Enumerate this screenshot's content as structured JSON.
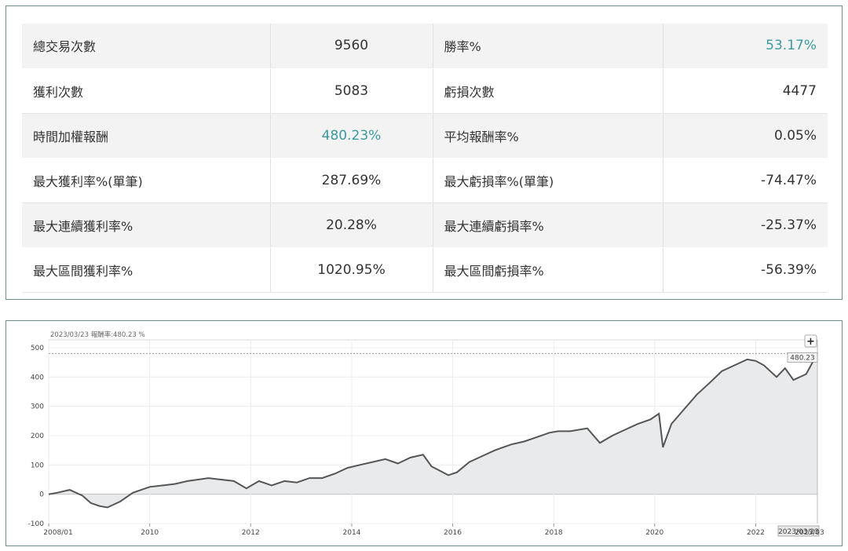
{
  "stats": {
    "rows": [
      {
        "l1": "總交易次數",
        "v1": "9560",
        "l2": "勝率%",
        "v2": "53.17%"
      },
      {
        "l1": "獲利次數",
        "v1": "5083",
        "l2": "虧損次數",
        "v2": "4477"
      },
      {
        "l1": "時間加權報酬",
        "v1": "480.23%",
        "l2": "平均報酬率%",
        "v2": "0.05%"
      },
      {
        "l1": "最大獲利率%(單筆)",
        "v1": "287.69%",
        "l2": "最大虧損率%(單筆)",
        "v2": "-74.47%"
      },
      {
        "l1": "最大連續獲利率%",
        "v1": "20.28%",
        "l2": "最大連續虧損率%",
        "v2": "-25.37%"
      },
      {
        "l1": "最大區間獲利率%",
        "v1": "1020.95%",
        "l2": "最大區間虧損率%",
        "v2": "-56.39%"
      }
    ]
  },
  "colors": {
    "accent": "#3a9a9e",
    "border": "#6b8e8a",
    "line": "#555555",
    "area": "#e8eaec"
  },
  "chart": {
    "info_date": "2023/03/23",
    "info_label": "報酬率:480.23 %",
    "last_value_label": "480.23",
    "last_date_label": "2023/03/23",
    "tail_label": "2023/03",
    "zoom_button": "+"
  },
  "chart_data": {
    "type": "area",
    "title": "",
    "xlabel": "",
    "ylabel": "",
    "x_range": [
      "2008/01",
      "2023/03/23"
    ],
    "ylim": [
      -100,
      500
    ],
    "y_ticks": [
      -100,
      0,
      100,
      200,
      300,
      400,
      500
    ],
    "x_tick_labels": [
      "2008/01",
      "2010",
      "2012",
      "2014",
      "2016",
      "2018",
      "2020",
      "2022"
    ],
    "grid": true,
    "legend": "none",
    "reference_line": 480.23,
    "series": [
      {
        "x": [
          "2008-01",
          "2008-03",
          "2008-06",
          "2008-09",
          "2008-11",
          "2009-01",
          "2009-03",
          "2009-06",
          "2009-09",
          "2010-01",
          "2010-04",
          "2010-07",
          "2010-10",
          "2011-03",
          "2011-06",
          "2011-09",
          "2011-12",
          "2012-03",
          "2012-06",
          "2012-09",
          "2012-12",
          "2013-03",
          "2013-06",
          "2013-09",
          "2013-12",
          "2014-03",
          "2014-06",
          "2014-09",
          "2014-12",
          "2015-03",
          "2015-06",
          "2015-08",
          "2015-10",
          "2015-12",
          "2016-02",
          "2016-05",
          "2016-08",
          "2016-11",
          "2017-03",
          "2017-06",
          "2017-09",
          "2017-12",
          "2018-02",
          "2018-05",
          "2018-09",
          "2018-12",
          "2019-03",
          "2019-06",
          "2019-09",
          "2019-12",
          "2020-02",
          "2020-03",
          "2020-05",
          "2020-08",
          "2020-11",
          "2021-02",
          "2021-05",
          "2021-08",
          "2021-11",
          "2022-01",
          "2022-03",
          "2022-06",
          "2022-08",
          "2022-10",
          "2023-01",
          "2023-03-23"
        ],
        "values": [
          0,
          5,
          15,
          -5,
          -30,
          -40,
          -45,
          -25,
          5,
          25,
          30,
          35,
          45,
          55,
          50,
          45,
          20,
          45,
          30,
          45,
          40,
          55,
          55,
          70,
          90,
          100,
          110,
          120,
          105,
          125,
          135,
          95,
          80,
          65,
          75,
          110,
          130,
          150,
          170,
          180,
          195,
          210,
          215,
          215,
          225,
          175,
          200,
          220,
          240,
          255,
          275,
          160,
          240,
          290,
          340,
          380,
          420,
          440,
          460,
          455,
          440,
          400,
          430,
          390,
          410,
          480.23
        ]
      }
    ]
  }
}
